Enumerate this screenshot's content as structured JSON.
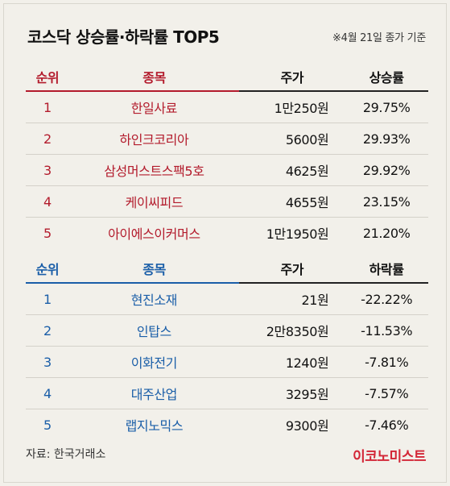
{
  "title": "코스닥 상승률·하락률 TOP5",
  "note": "※4월 21일 종가 기준",
  "gainers": {
    "headers": [
      "순위",
      "종목",
      "주가",
      "상승률"
    ],
    "rows": [
      {
        "rank": "1",
        "name": "한일사료",
        "price": "1만250원",
        "rate": "29.75%"
      },
      {
        "rank": "2",
        "name": "하인크코리아",
        "price": "5600원",
        "rate": "29.93%"
      },
      {
        "rank": "3",
        "name": "삼성머스트스팩5호",
        "price": "4625원",
        "rate": "29.92%"
      },
      {
        "rank": "4",
        "name": "케이씨피드",
        "price": "4655원",
        "rate": "23.15%"
      },
      {
        "rank": "5",
        "name": "아이에스이커머스",
        "price": "1만1950원",
        "rate": "21.20%"
      }
    ]
  },
  "losers": {
    "headers": [
      "순위",
      "종목",
      "주가",
      "하락률"
    ],
    "rows": [
      {
        "rank": "1",
        "name": "현진소재",
        "price": "21원",
        "rate": "-22.22%"
      },
      {
        "rank": "2",
        "name": "인탑스",
        "price": "2만8350원",
        "rate": "-11.53%"
      },
      {
        "rank": "3",
        "name": "이화전기",
        "price": "1240원",
        "rate": "-7.81%"
      },
      {
        "rank": "4",
        "name": "대주산업",
        "price": "3295원",
        "rate": "-7.57%"
      },
      {
        "rank": "5",
        "name": "랩지노믹스",
        "price": "9300원",
        "rate": "-7.46%"
      }
    ]
  },
  "source": "자료: 한국거래소",
  "brand": "이코노미스트",
  "colors": {
    "gain": "#b31b2c",
    "loss": "#1a5ea8",
    "brand": "#d32636"
  }
}
